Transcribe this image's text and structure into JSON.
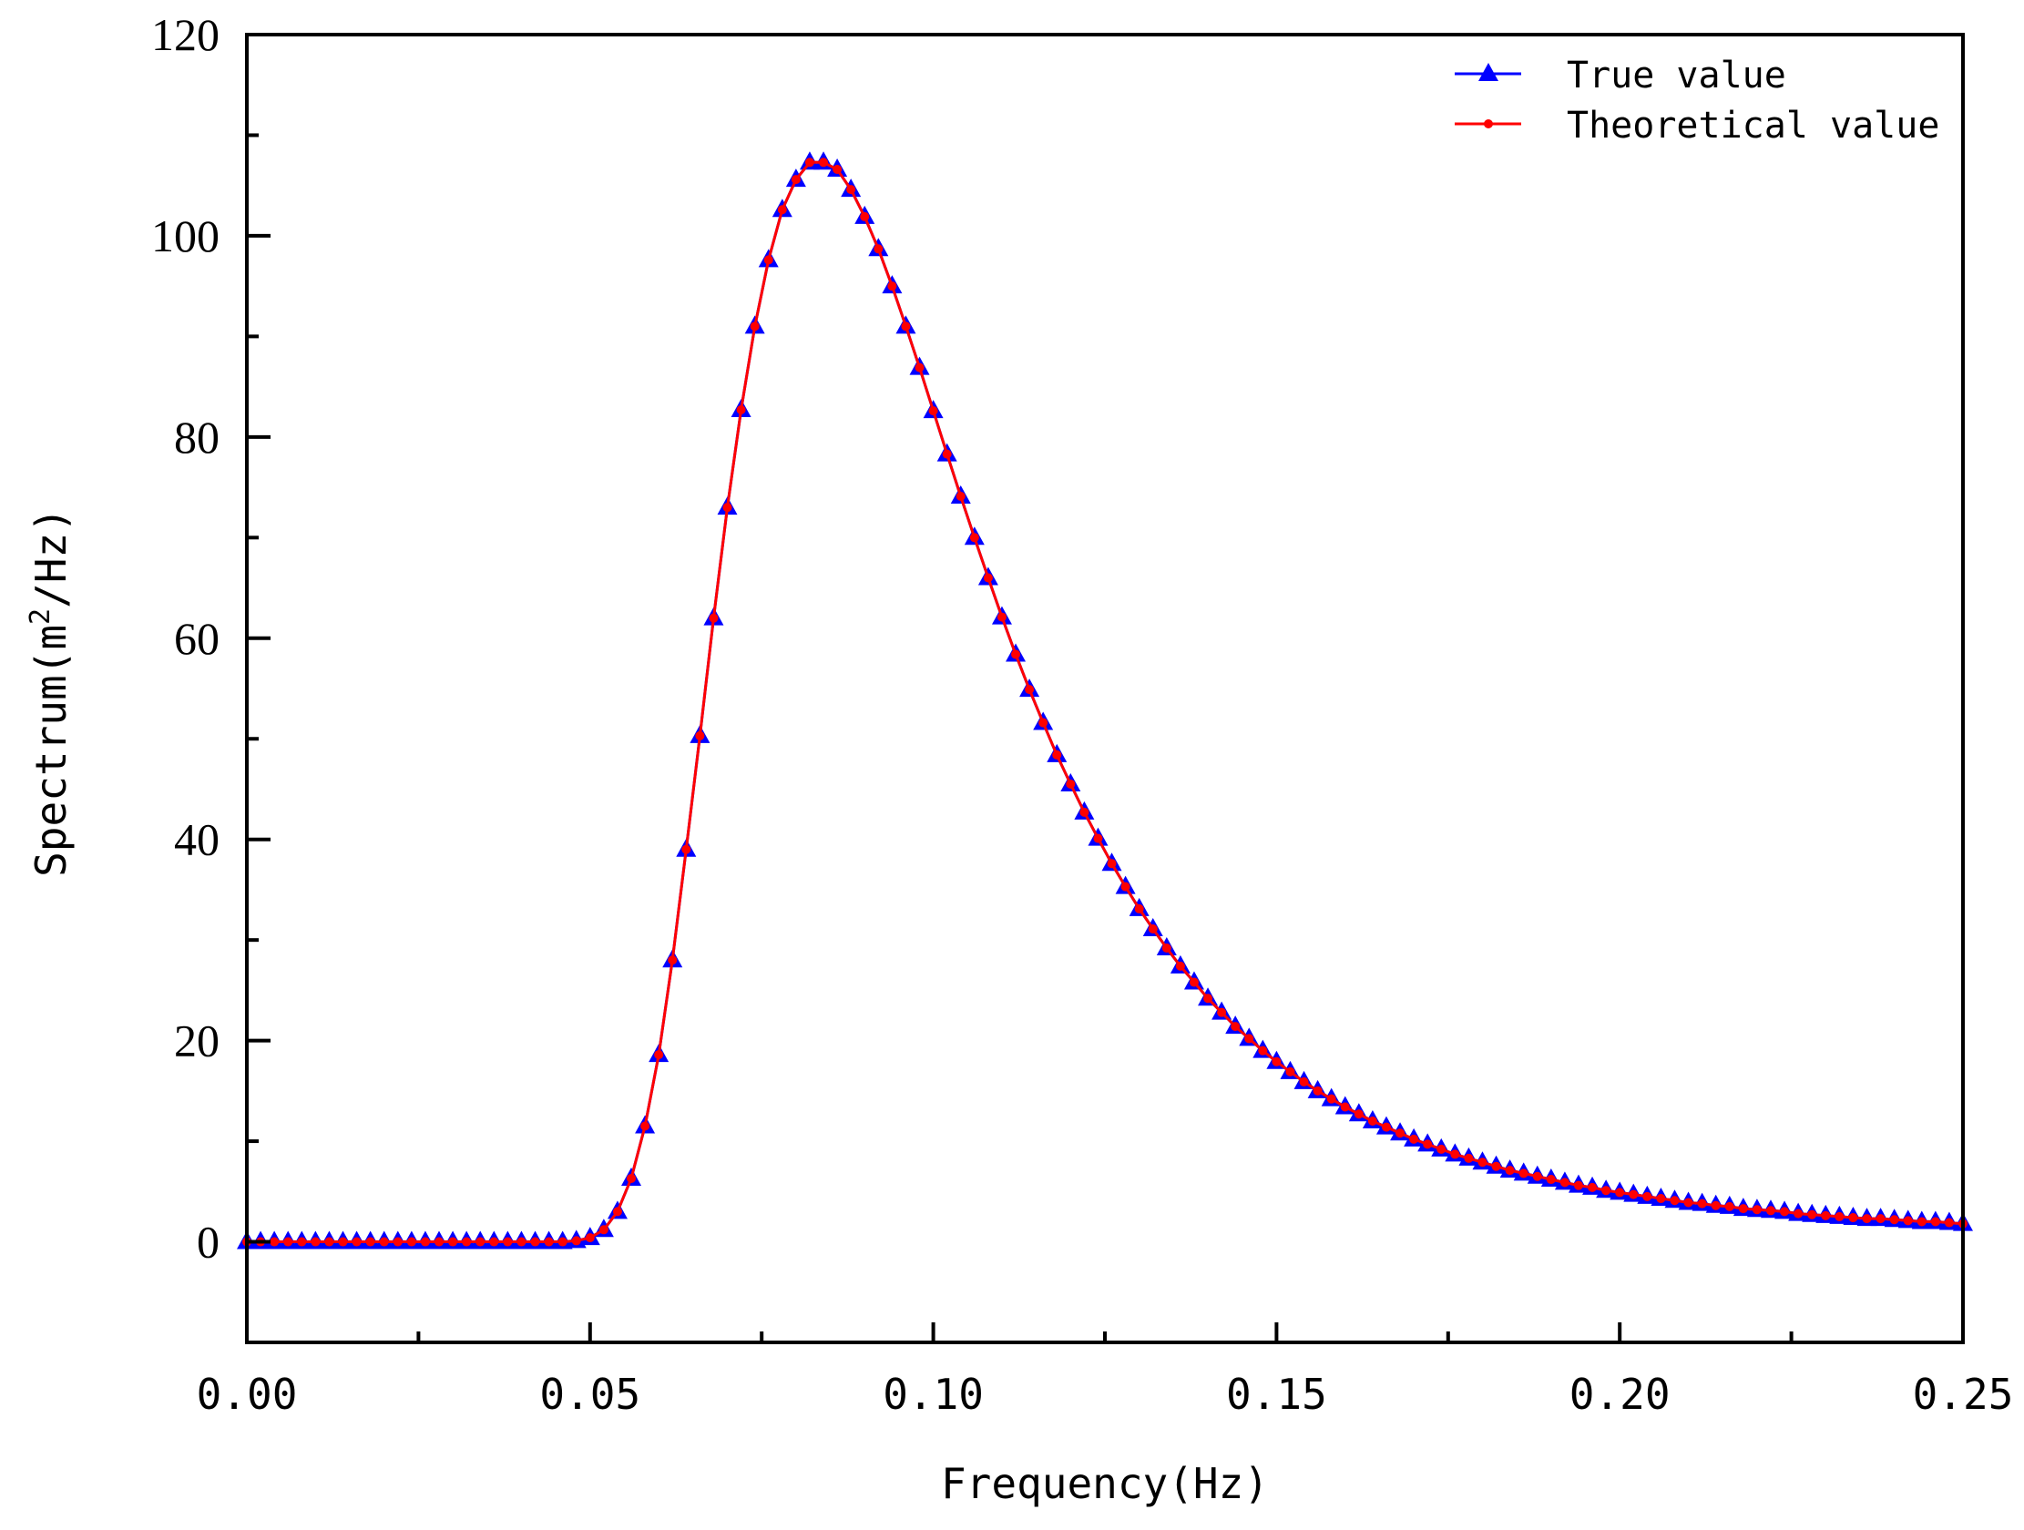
{
  "chart_data": {
    "type": "line",
    "title": "",
    "xlabel": "Frequency(Hz)",
    "ylabel": "Spectrum(m²/Hz)",
    "ylabel_parts": {
      "pre": "Spectrum(m",
      "sup": "2",
      "post": "/Hz)"
    },
    "xlim": [
      0,
      0.25
    ],
    "ylim": [
      -10,
      120
    ],
    "grid": false,
    "legend_position": "upper right",
    "x_ticks": [
      0.0,
      0.05,
      0.1,
      0.15,
      0.2,
      0.25
    ],
    "x_tick_labels": [
      "0.00",
      "0.05",
      "0.10",
      "0.15",
      "0.20",
      "0.25"
    ],
    "y_ticks": [
      0,
      20,
      40,
      60,
      80,
      100,
      120
    ],
    "y_tick_labels": [
      "0",
      "20",
      "40",
      "60",
      "80",
      "100",
      "120"
    ],
    "x_step": 0.002,
    "x_start": 0,
    "values": [
      0,
      0,
      0,
      0,
      0,
      0,
      0,
      0,
      0,
      0,
      0,
      0,
      0,
      0,
      0,
      0,
      0,
      0,
      0,
      0,
      0,
      0,
      0,
      0,
      0.1,
      0.4,
      1.2,
      3,
      6.3,
      11.5,
      18.6,
      28,
      39,
      50.3,
      62,
      73,
      82.7,
      91,
      97.6,
      102.6,
      105.6,
      107.3,
      107.3,
      106.6,
      104.6,
      101.9,
      98.7,
      95,
      91,
      86.9,
      82.6,
      78.3,
      74.1,
      70,
      66,
      62.1,
      58.4,
      54.9,
      51.6,
      48.4,
      45.5,
      42.7,
      40.1,
      37.6,
      35.3,
      33.1,
      31.1,
      29.2,
      27.4,
      25.8,
      24.2,
      22.8,
      21.4,
      20.2,
      19,
      17.9,
      16.9,
      15.9,
      15,
      14.2,
      13.4,
      12.7,
      12,
      11.4,
      10.8,
      10.2,
      9.7,
      9.2,
      8.7,
      8.3,
      7.9,
      7.5,
      7.1,
      6.8,
      6.5,
      6.2,
      5.9,
      5.6,
      5.4,
      5.1,
      4.9,
      4.7,
      4.5,
      4.3,
      4.1,
      3.9,
      3.8,
      3.6,
      3.5,
      3.3,
      3.2,
      3.1,
      3,
      2.8,
      2.7,
      2.6,
      2.5,
      2.4,
      2.3,
      2.3,
      2.2,
      2.1,
      2,
      2,
      1.9,
      1.8
    ],
    "series": [
      {
        "name": "True value",
        "color": "#0000ff",
        "marker": "triangle"
      },
      {
        "name": "Theoretical value",
        "color": "#ff0000",
        "marker": "circle"
      }
    ]
  },
  "legend": {
    "items": [
      "True value",
      "Theoretical value"
    ]
  }
}
